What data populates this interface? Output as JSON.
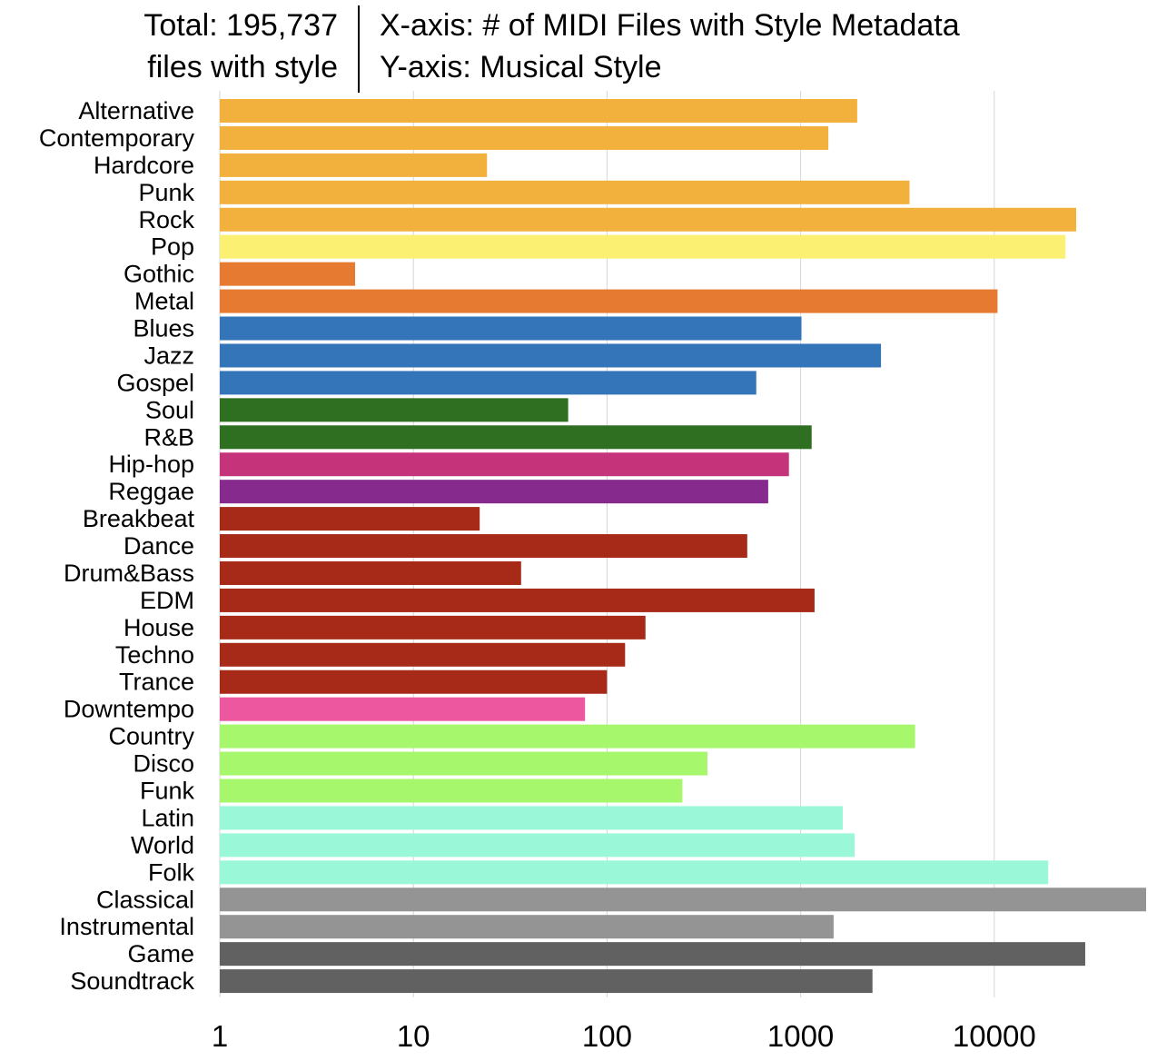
{
  "header": {
    "total_line1": "Total: 195,737",
    "total_line2": "files with style",
    "axis_line1": "X-axis: # of MIDI Files with Style Metadata",
    "axis_line2": "Y-axis: Musical Style"
  },
  "chart_data": {
    "type": "bar",
    "orientation": "horizontal",
    "x_scale": "log",
    "xlim": [
      1,
      70000
    ],
    "x_ticks": [
      "1",
      "10",
      "100",
      "1000",
      "10000"
    ],
    "x_tick_values": [
      1,
      10,
      100,
      1000,
      10000
    ],
    "grid": "vertical",
    "categories": [
      "Alternative",
      "Contemporary",
      "Hardcore",
      "Punk",
      "Rock",
      "Pop",
      "Gothic",
      "Metal",
      "Blues",
      "Jazz",
      "Gospel",
      "Soul",
      "R&B",
      "Hip-hop",
      "Reggae",
      "Breakbeat",
      "Dance",
      "Drum&Bass",
      "EDM",
      "House",
      "Techno",
      "Trance",
      "Downtempo",
      "Country",
      "Disco",
      "Funk",
      "Latin",
      "World",
      "Folk",
      "Classical",
      "Instrumental",
      "Game",
      "Soundtrack"
    ],
    "values": [
      1960,
      1390,
      24,
      3650,
      26500,
      23300,
      5,
      10400,
      1010,
      2600,
      590,
      63,
      1140,
      870,
      680,
      22,
      530,
      36,
      1180,
      158,
      124,
      100,
      77,
      3900,
      330,
      245,
      1650,
      1900,
      19000,
      70000,
      1480,
      29500,
      2350
    ],
    "colors": [
      "#F2B13D",
      "#F2B13D",
      "#F2B13D",
      "#F2B13D",
      "#F2B13D",
      "#FBF071",
      "#E67A30",
      "#E67A30",
      "#3375B8",
      "#3375B8",
      "#3375B8",
      "#2E6F21",
      "#2E6F21",
      "#C5337A",
      "#862A8D",
      "#A72A19",
      "#A72A19",
      "#A72A19",
      "#A72A19",
      "#A72A19",
      "#A72A19",
      "#A72A19",
      "#EC579F",
      "#A6F76C",
      "#A6F76C",
      "#A6F76C",
      "#9AF8D8",
      "#9AF8D8",
      "#9AF8D8",
      "#949494",
      "#949494",
      "#616161",
      "#616161"
    ]
  }
}
